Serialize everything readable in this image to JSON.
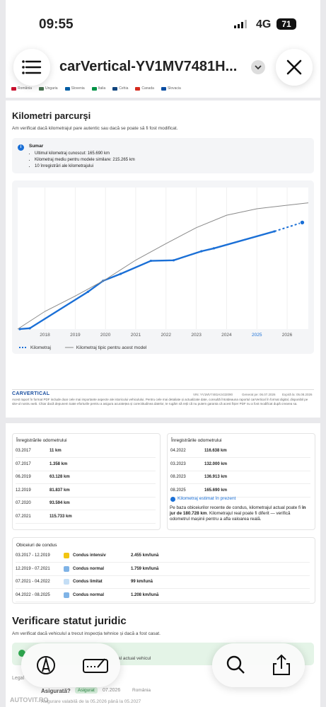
{
  "status": {
    "time": "09:55",
    "network": "4G",
    "battery": "71"
  },
  "toolbar": {
    "title": "carVertical-YV1MV7481H..."
  },
  "countries": [
    "România",
    "Ungaria",
    "Slovenia",
    "Italia",
    "Cehia",
    "Canada",
    "Slovacia"
  ],
  "mileage": {
    "title": "Kilometri parcurși",
    "subtitle": "Am verificat dacă kilometrajul pare autentic sau dacă se poate să fi fost modificat.",
    "summary": {
      "title": "Sumar",
      "items": [
        "Ultimul kilometraj cunoscut: 165.690 km",
        "Kilometraj mediu pentru modele similare: 215.265 km",
        "10 înregistrări ale kilometrajului"
      ]
    }
  },
  "chart_data": {
    "type": "line",
    "xlim": [
      2017.1,
      2026.7
    ],
    "xticks": [
      2018,
      2019,
      2020,
      2021,
      2022,
      2023,
      2024,
      2025,
      2026
    ],
    "highlight_xtick": 2025,
    "ylim": [
      0,
      240000
    ],
    "grid": true,
    "dashed_last_segment": true,
    "series": [
      {
        "name": "Kilometraj",
        "color": "#1a6fd6",
        "x": [
          2017.17,
          2017.5,
          2019.42,
          2019.92,
          2020.5,
          2021.5,
          2022.25,
          2023.17,
          2023.58,
          2025.58,
          2026.5
        ],
        "values": [
          11,
          1358,
          63128,
          81837,
          93594,
          115733,
          116638,
          132000,
          136913,
          165690,
          180728
        ]
      },
      {
        "name": "Kilometraj tipic pentru acest model",
        "color": "#8a8a8a",
        "x": [
          2017.1,
          2018,
          2019,
          2020,
          2021,
          2022,
          2023,
          2024,
          2025,
          2026,
          2026.7
        ],
        "values": [
          0,
          30000,
          56000,
          84000,
          117000,
          145000,
          172000,
          193000,
          204000,
          210000,
          214000
        ]
      }
    ]
  },
  "footer": {
    "logo": "CARVERTICAL",
    "vin": "VIN: YV1MV7481H2432090",
    "generated": "Generat pe: 06.07.2026",
    "expires": "Expiră la: 05.08.2026",
    "disclaimer": "Acest raport în format PDF include doar cele mai importante aspecte ale istoricului vehiculului. Pentru cele mai detaliate și actualizate date, consultă întotdeauna raportul carVertical în format digital, disponibil pe site-ul nostru web. Chiar dacă depunem toate eforturile pentru a asigura acuratețea și corectitudinea datelor, te rugăm să reții că nu putem garanta că acest fișier PDF nu a fost modificat după crearea sa."
  },
  "records": {
    "title_left": "Înregistrările odometrului",
    "title_right": "Înregistrările odometrului",
    "left": [
      [
        "03.2017",
        "11 km"
      ],
      [
        "07.2017",
        "1.358 km"
      ],
      [
        "06.2019",
        "63.128 km"
      ],
      [
        "12.2019",
        "81.837 km"
      ],
      [
        "07.2020",
        "93.594 km"
      ],
      [
        "07.2021",
        "115.733 km"
      ]
    ],
    "right": [
      [
        "04.2022",
        "116.638 km"
      ],
      [
        "03.2023",
        "132.000 km"
      ],
      [
        "08.2023",
        "136.913 km"
      ],
      [
        "08.2025",
        "165.690 km"
      ]
    ]
  },
  "estimate": {
    "title": "Kilometraj estimat în prezent",
    "text_before": "Pe baza obiceiurilor recente de condus, kilometrajul actual poate fi ",
    "text_bold": "în jur de 180.728 km",
    "text_after": ". Kilometrajul real poate fi diferit — verifică odometrul mașinii pentru a afla valoarea reală."
  },
  "habits": {
    "title": "Obiceiuri de condus",
    "rows": [
      {
        "period": "03.2017 - 12.2019",
        "color": "#f2c511",
        "label": "Condus intensiv",
        "rate": "2.455 km/lună"
      },
      {
        "period": "12.2019 - 07.2021",
        "color": "#7fb3e6",
        "label": "Condus normal",
        "rate": "1.759 km/lună"
      },
      {
        "period": "07.2021 - 04.2022",
        "color": "#c4def5",
        "label": "Condus limitat",
        "rate": "99 km/lună"
      },
      {
        "period": "04.2022 - 08.2025",
        "color": "#7fb3e6",
        "label": "Condus normal",
        "rate": "1.208 km/lună"
      }
    ]
  },
  "legal": {
    "title": "Verificare statut juridic",
    "subtitle": "Am verificat dacă vehiculul a trecut inspecția tehnice și dacă a fost casat.",
    "banner": "al actual vehicul",
    "section": "Legal",
    "question": "Asigurată?",
    "badge": "Asigurat",
    "date": "07.2026",
    "country": "România",
    "note": "Asigurare valabilă de la 05.2026 până la 05.2027"
  },
  "watermark": "AUTOVIT.RO"
}
